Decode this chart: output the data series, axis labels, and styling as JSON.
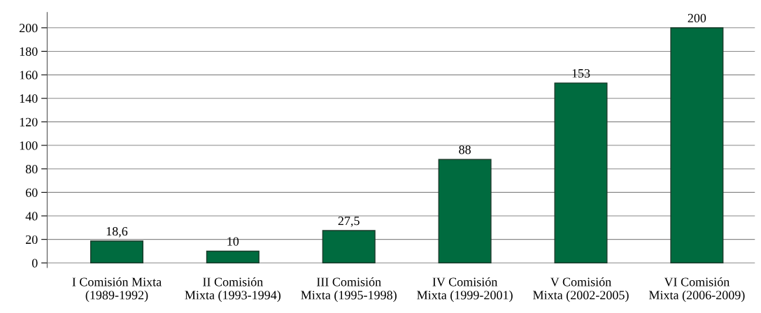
{
  "chart_data": {
    "type": "bar",
    "categories": [
      "I Comisión Mixta\n(1989-1992)",
      "II Comisión\nMixta (1993-1994)",
      "III Comisión\nMixta (1995-1998)",
      "IV Comisión\nMixta (1999-2001)",
      "V Comisión\nMixta (2002-2005)",
      "VI Comisión\nMixta (2006-2009)"
    ],
    "values": [
      18.6,
      10,
      27.5,
      88,
      153,
      200
    ],
    "value_labels": [
      "18,6",
      "10",
      "27,5",
      "88",
      "153",
      "200"
    ],
    "color": "#006b3f",
    "ylim": [
      -4,
      213
    ],
    "yticks": [
      0,
      20,
      40,
      60,
      80,
      100,
      120,
      140,
      160,
      180,
      200
    ],
    "grid": "y"
  }
}
